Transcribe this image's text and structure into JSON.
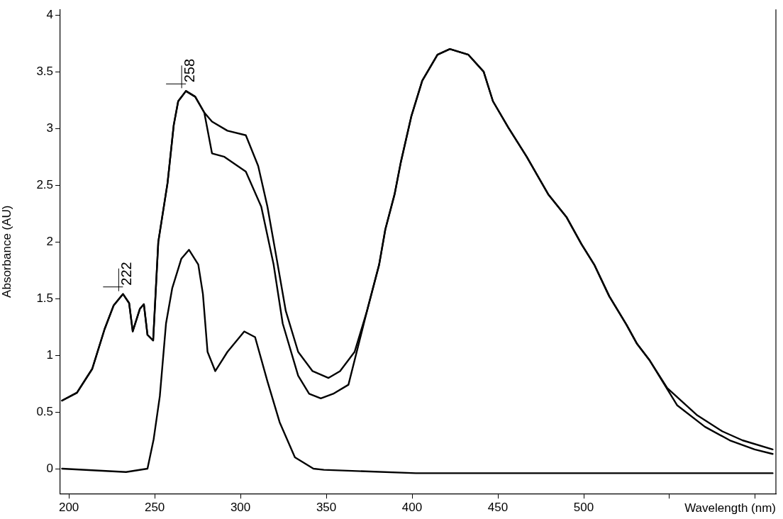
{
  "chart_data": {
    "type": "line",
    "xlabel": "Wavelength (nm)",
    "ylabel": "Absorbance (AU)",
    "xlim": [
      195,
      612
    ],
    "xticks": [
      200,
      250,
      300,
      350,
      400,
      450,
      500,
      {
        "value": 550,
        "label": null
      },
      {
        "value": 600,
        "label": null
      }
    ],
    "ylim": [
      -0.22,
      4.05
    ],
    "yticks": [
      0,
      0.5,
      1,
      1.5,
      2,
      2.5,
      3,
      3.5,
      4
    ],
    "grid": false,
    "legend": false,
    "marker": "none",
    "line_style": "solid",
    "annotations": [
      {
        "text": "222",
        "x": 231.5,
        "y": 1.54
      },
      {
        "text": "258",
        "x": 268.2,
        "y": 3.33
      }
    ],
    "series": [
      {
        "color": "#000000",
        "x": [
          196,
          204.7,
          213.6,
          220.8,
          226.1,
          231.5,
          235.1,
          237.2,
          241.4,
          243.7,
          245.8,
          249.1,
          252.1,
          257.5,
          261.1,
          263.7,
          268.2,
          273.6,
          278.9,
          283.4,
          292.4,
          303.1,
          310.3,
          315.7,
          321.1,
          326.4,
          333.6,
          342,
          351.3,
          358,
          366.5,
          373.7,
          380.8,
          384.4,
          389.8,
          393.4,
          399.6,
          405.9,
          414.8,
          422,
          432.8,
          441.7,
          447.1,
          456,
          466.8,
          479.3,
          489.9,
          498.7,
          506.1,
          514.9,
          524.9,
          531.1,
          538.2,
          548.7,
          566.2,
          580.7,
          592.5,
          610.1
        ],
        "values": [
          0.6,
          0.67,
          0.88,
          1.23,
          1.44,
          1.54,
          1.46,
          1.21,
          1.41,
          1.45,
          1.18,
          1.13,
          2.0,
          2.52,
          3.03,
          3.24,
          3.33,
          3.28,
          3.14,
          3.06,
          2.98,
          2.94,
          2.67,
          2.31,
          1.85,
          1.39,
          1.03,
          0.86,
          0.8,
          0.86,
          1.03,
          1.39,
          1.8,
          2.11,
          2.42,
          2.7,
          3.11,
          3.42,
          3.65,
          3.7,
          3.65,
          3.5,
          3.24,
          3.01,
          2.75,
          2.42,
          2.22,
          1.98,
          1.8,
          1.52,
          1.27,
          1.1,
          0.96,
          0.71,
          0.47,
          0.33,
          0.25,
          0.17
        ]
      },
      {
        "color": "#000000",
        "x": [
          196,
          204.7,
          213.6,
          220.8,
          226.1,
          231.5,
          235.1,
          237.2,
          241.4,
          243.7,
          245.8,
          249.1,
          252.1,
          257.5,
          261.1,
          263.7,
          268.2,
          273.6,
          278.9,
          283.4,
          290.6,
          303.1,
          312.1,
          319.3,
          324.6,
          333.6,
          340,
          346.8,
          354,
          362.9,
          373.7,
          380.8,
          384.4,
          389.8,
          393.4,
          399.6,
          405.9,
          414.8,
          422,
          432.8,
          441.7,
          447.1,
          456,
          466.8,
          479.3,
          489.9,
          498.7,
          506.1,
          514.9,
          524.9,
          531.1,
          538.2,
          554.4,
          570.6,
          585.1,
          599.6,
          610.1
        ],
        "values": [
          0.6,
          0.67,
          0.88,
          1.23,
          1.44,
          1.54,
          1.46,
          1.21,
          1.41,
          1.45,
          1.18,
          1.13,
          2.0,
          2.52,
          3.03,
          3.24,
          3.33,
          3.28,
          3.14,
          2.78,
          2.75,
          2.62,
          2.31,
          1.8,
          1.28,
          0.82,
          0.66,
          0.62,
          0.66,
          0.74,
          1.39,
          1.8,
          2.11,
          2.42,
          2.7,
          3.11,
          3.42,
          3.65,
          3.7,
          3.65,
          3.5,
          3.24,
          3.01,
          2.75,
          2.42,
          2.22,
          1.98,
          1.8,
          1.52,
          1.27,
          1.1,
          0.96,
          0.56,
          0.37,
          0.25,
          0.17,
          0.13
        ]
      },
      {
        "color": "#000000",
        "x": [
          196,
          233.3,
          245.8,
          249.4,
          253,
          256.6,
          260.2,
          265.5,
          270,
          275.4,
          278.1,
          280.8,
          285.3,
          292.4,
          302.2,
          308.5,
          315.7,
          322.8,
          331.7,
          342.5,
          348.6,
          402.2,
          610.1
        ],
        "values": [
          0.0,
          -0.03,
          0.0,
          0.26,
          0.64,
          1.28,
          1.59,
          1.85,
          1.93,
          1.8,
          1.54,
          1.03,
          0.86,
          1.03,
          1.21,
          1.16,
          0.77,
          0.41,
          0.1,
          0.0,
          -0.01,
          -0.04,
          -0.04
        ]
      }
    ]
  }
}
